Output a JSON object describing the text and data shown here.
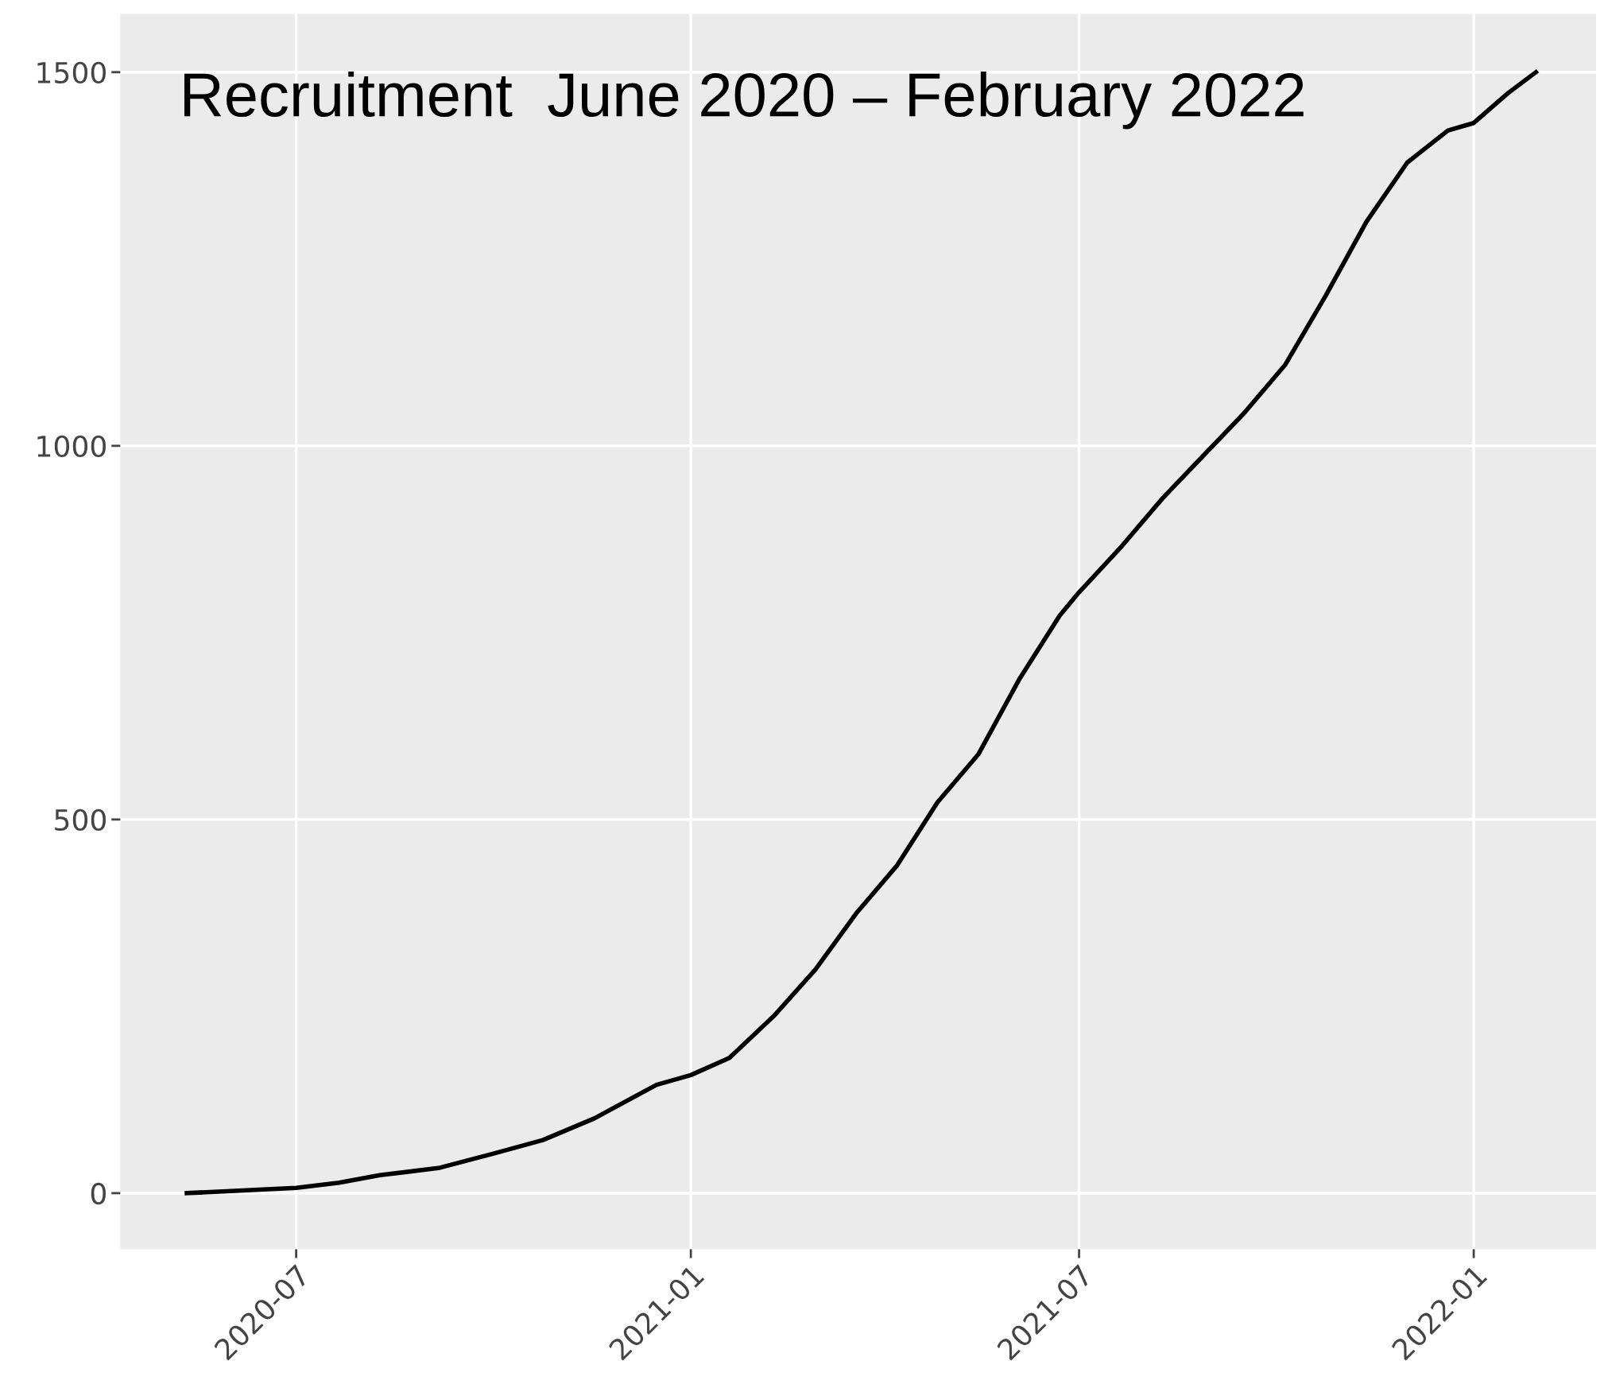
{
  "chart_data": {
    "type": "line",
    "title": "Recruitment  June 2020 – February 2022",
    "x": [
      "2020-05-11",
      "2020-07-01",
      "2020-07-21",
      "2020-08-09",
      "2020-09-06",
      "2020-10-01",
      "2020-10-24",
      "2020-11-17",
      "2020-12-16",
      "2021-01-01",
      "2021-01-19",
      "2021-02-09",
      "2021-02-28",
      "2021-03-19",
      "2021-04-07",
      "2021-04-26",
      "2021-05-15",
      "2021-06-03",
      "2021-06-22",
      "2021-07-01",
      "2021-07-21",
      "2021-08-09",
      "2021-08-28",
      "2021-09-16",
      "2021-10-05",
      "2021-10-24",
      "2021-11-12",
      "2021-12-01",
      "2021-12-20",
      "2022-01-01",
      "2022-01-17",
      "2022-01-30"
    ],
    "series": [
      {
        "color": "#000000",
        "values": [
          0,
          7,
          14,
          24,
          34,
          53,
          71,
          100,
          145,
          158,
          181,
          238,
          299,
          374,
          438,
          523,
          587,
          687,
          773,
          804,
          866,
          930,
          987,
          1044,
          1108,
          1201,
          1300,
          1379,
          1422,
          1432,
          1472,
          1500
        ]
      }
    ],
    "xlim": [
      "2020-04-10",
      "2022-02-27"
    ],
    "xticks": [
      {
        "value": "2020-07-01",
        "label": "2020-07"
      },
      {
        "value": "2021-01-01",
        "label": "2021-01"
      },
      {
        "value": "2021-07-01",
        "label": "2021-07"
      },
      {
        "value": "2022-01-01",
        "label": "2022-01"
      }
    ],
    "ylim": [
      -75,
      1578
    ],
    "yticks": [
      0,
      500,
      1000,
      1500
    ],
    "grid": true,
    "marker": "none",
    "line_style": "solid"
  }
}
